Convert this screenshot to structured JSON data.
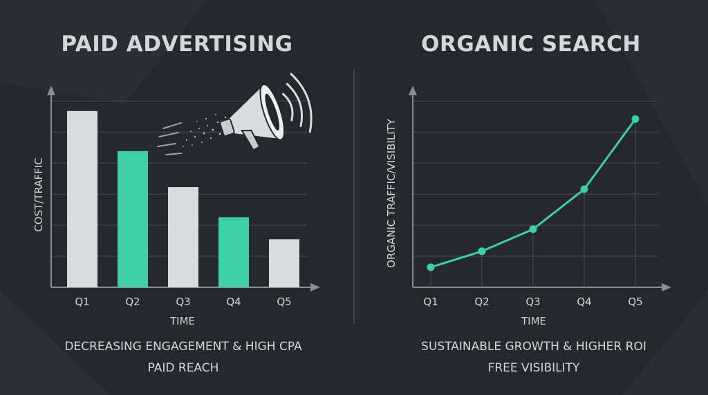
{
  "colors": {
    "background": "#25292e",
    "bar_gray": "#d9dbde",
    "accent_green": "#3ecfa6",
    "text": "#d4d6d9",
    "axis": "#8a8f96",
    "grid": "#4a4f56"
  },
  "icons": {
    "megaphone": "megaphone-icon"
  },
  "chart_data": [
    {
      "type": "bar",
      "title": "PAID ADVERTISING",
      "xlabel": "TIME",
      "ylabel": "COST/TRAFFIC",
      "categories": [
        "Q1",
        "Q2",
        "Q3",
        "Q4",
        "Q5"
      ],
      "values": [
        88,
        68,
        50,
        35,
        24
      ],
      "bar_colors": [
        "#d9dbde",
        "#3ecfa6",
        "#d9dbde",
        "#3ecfa6",
        "#d9dbde"
      ],
      "ylim": [
        0,
        100
      ],
      "grid": true,
      "caption_lines": [
        "DECREASING ENGAGEMENT & HIGH CPA",
        "PAID REACH"
      ]
    },
    {
      "type": "line",
      "title": "ORGANIC SEARCH",
      "xlabel": "TIME",
      "ylabel": "ORGANIC TRAFFIC/VISIBILITY",
      "categories": [
        "Q1",
        "Q2",
        "Q3",
        "Q4",
        "Q5"
      ],
      "values": [
        10,
        18,
        29,
        49,
        84
      ],
      "ylim": [
        0,
        100
      ],
      "grid": true,
      "line_color": "#3ecfa6",
      "caption_lines": [
        "SUSTAINABLE GROWTH & HIGHER ROI",
        "FREE VISIBILITY"
      ]
    }
  ]
}
